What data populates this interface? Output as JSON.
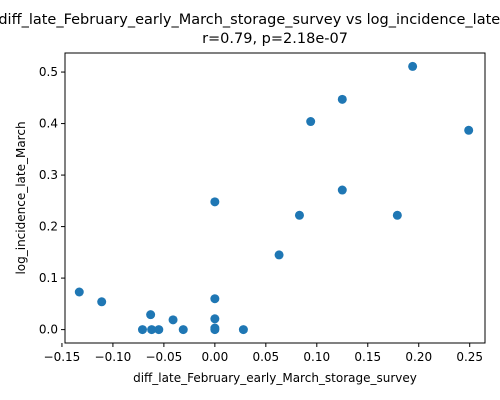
{
  "chart_data": {
    "type": "scatter",
    "title_line1": "diff_late_February_early_March_storage_survey vs log_incidence_late_March",
    "title_line2": "r=0.79, p=2.18e-07",
    "xlabel": "diff_late_February_early_March_storage_survey",
    "ylabel": "log_incidence_late_March",
    "xlim": [
      -0.147,
      0.265
    ],
    "ylim": [
      -0.026,
      0.537
    ],
    "xticks": [
      -0.15,
      -0.1,
      -0.05,
      0.0,
      0.05,
      0.1,
      0.15,
      0.2,
      0.25
    ],
    "xtick_labels": [
      "−0.15",
      "−0.10",
      "−0.05",
      "0.00",
      "0.05",
      "0.10",
      "0.15",
      "0.20",
      "0.25"
    ],
    "yticks": [
      0.0,
      0.1,
      0.2,
      0.3,
      0.4,
      0.5
    ],
    "ytick_labels": [
      "0.0",
      "0.1",
      "0.2",
      "0.3",
      "0.4",
      "0.5"
    ],
    "marker_color": "#1f77b4",
    "grid": false,
    "series": [
      {
        "points": [
          {
            "x": -0.133,
            "y": 0.073
          },
          {
            "x": -0.111,
            "y": 0.054
          },
          {
            "x": -0.071,
            "y": 0.0
          },
          {
            "x": -0.063,
            "y": 0.029
          },
          {
            "x": -0.062,
            "y": 0.0
          },
          {
            "x": -0.055,
            "y": 0.0
          },
          {
            "x": -0.041,
            "y": 0.019
          },
          {
            "x": -0.031,
            "y": 0.0
          },
          {
            "x": 0.0,
            "y": 0.248
          },
          {
            "x": 0.0,
            "y": 0.06
          },
          {
            "x": 0.0,
            "y": 0.021
          },
          {
            "x": 0.0,
            "y": 0.003
          },
          {
            "x": 0.0,
            "y": 0.0
          },
          {
            "x": 0.028,
            "y": 0.0
          },
          {
            "x": 0.063,
            "y": 0.145
          },
          {
            "x": 0.083,
            "y": 0.222
          },
          {
            "x": 0.094,
            "y": 0.404
          },
          {
            "x": 0.125,
            "y": 0.447
          },
          {
            "x": 0.125,
            "y": 0.271
          },
          {
            "x": 0.179,
            "y": 0.222
          },
          {
            "x": 0.194,
            "y": 0.511
          },
          {
            "x": 0.249,
            "y": 0.387
          }
        ]
      }
    ]
  }
}
